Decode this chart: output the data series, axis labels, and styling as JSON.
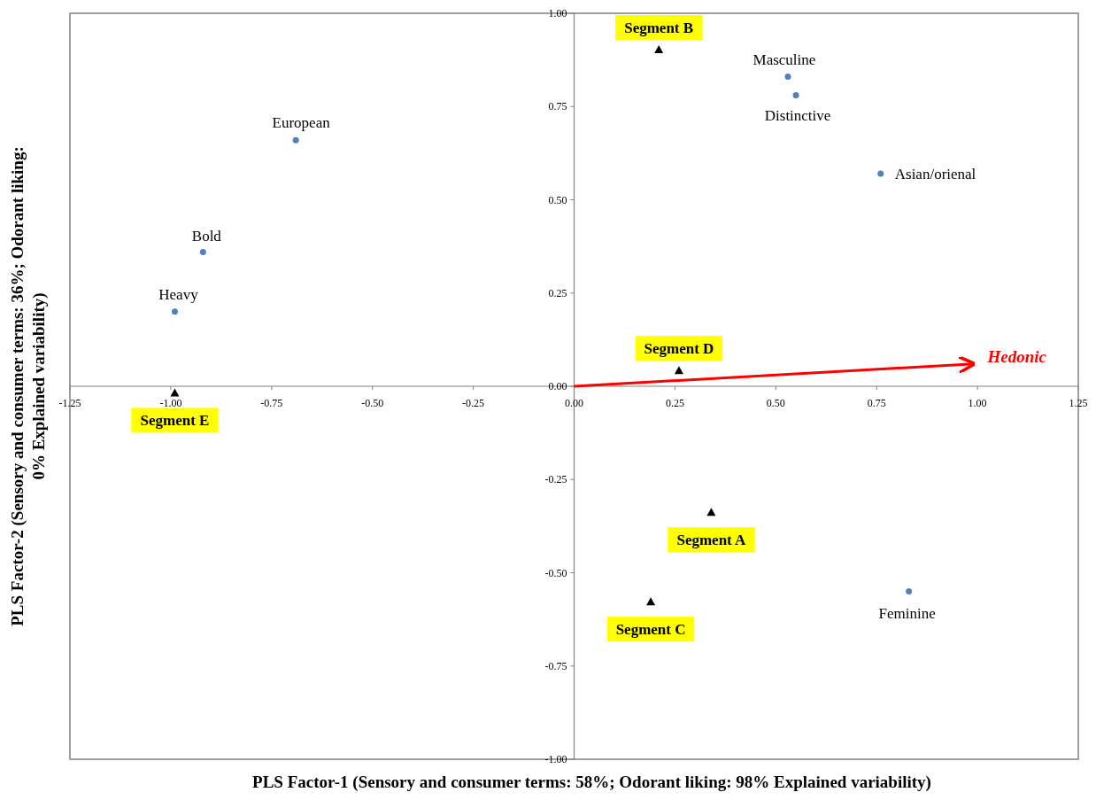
{
  "chart_data": {
    "type": "scatter",
    "xlabel": "PLS Factor-1 (Sensory and consumer terms: 58%; Odorant liking: 98% Explained variability)",
    "ylabel": "PLS Factor-2 (Sensory and consumer terms: 36%; Odorant liking: 0% Explained variability)",
    "xlim": [
      -1.25,
      1.25
    ],
    "ylim": [
      -1,
      1
    ],
    "xticks": [
      {
        "value": -1.25,
        "label": "-1.25"
      },
      {
        "value": -1,
        "label": "-1.00"
      },
      {
        "value": -0.75,
        "label": "-0.75"
      },
      {
        "value": -0.5,
        "label": "-0.50"
      },
      {
        "value": -0.25,
        "label": "-0.25"
      },
      {
        "value": 0,
        "label": "0.00"
      },
      {
        "value": 0.25,
        "label": "0.25"
      },
      {
        "value": 0.5,
        "label": "0.50"
      },
      {
        "value": 0.75,
        "label": "0.75"
      },
      {
        "value": 1,
        "label": "1.00"
      },
      {
        "value": 1.25,
        "label": "1.25"
      }
    ],
    "yticks": [
      {
        "value": -1,
        "label": "-1.00"
      },
      {
        "value": -0.75,
        "label": "-0.75"
      },
      {
        "value": -0.5,
        "label": "-0.50"
      },
      {
        "value": -0.25,
        "label": "-0.25"
      },
      {
        "value": 0,
        "label": "0.00"
      },
      {
        "value": 0.25,
        "label": "0.25"
      },
      {
        "value": 0.5,
        "label": "0.50"
      },
      {
        "value": 0.75,
        "label": "0.75"
      },
      {
        "value": 1,
        "label": "1.00"
      }
    ],
    "grid": false,
    "series": [
      {
        "marker": "circle",
        "color": "#4f81bd",
        "x": [
          -0.69,
          -0.92,
          -0.99,
          0.53,
          0.55,
          0.76,
          0.83
        ],
        "values": [
          0.66,
          0.36,
          0.2,
          0.83,
          0.78,
          0.57,
          -0.55
        ]
      },
      {
        "marker": "triangle",
        "color": "#000000",
        "x": [
          0.21,
          0.26,
          -0.99,
          0.34,
          0.19
        ],
        "values": [
          0.9,
          0.04,
          -0.02,
          -0.34,
          -0.58
        ]
      },
      {
        "type": "line",
        "color": "#ff0000",
        "x": [
          0,
          0.99
        ],
        "values": [
          0,
          0.06
        ]
      }
    ],
    "annotations": [
      {
        "text": "European",
        "x": -0.69,
        "y": 0.66
      },
      {
        "text": "Bold",
        "x": -0.92,
        "y": 0.36
      },
      {
        "text": "Heavy",
        "x": -0.99,
        "y": 0.2
      },
      {
        "text": "Masculine",
        "x": 0.53,
        "y": 0.83
      },
      {
        "text": "Distinctive",
        "x": 0.55,
        "y": 0.78
      },
      {
        "text": "Asian/orienal",
        "x": 0.76,
        "y": 0.57
      },
      {
        "text": "Feminine",
        "x": 0.83,
        "y": -0.55
      },
      {
        "text": "Segment B",
        "x": 0.21,
        "y": 0.9
      },
      {
        "text": "Segment D",
        "x": 0.26,
        "y": 0.04
      },
      {
        "text": "Segment E",
        "x": -0.99,
        "y": -0.02
      },
      {
        "text": "Segment A",
        "x": 0.34,
        "y": -0.34
      },
      {
        "text": "Segment C",
        "x": 0.19,
        "y": -0.58
      },
      {
        "text": "Hedonic",
        "x": 0.99,
        "y": 0.06
      }
    ]
  }
}
